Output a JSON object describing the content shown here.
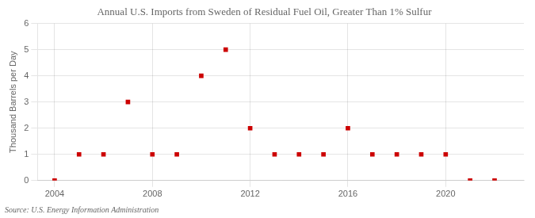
{
  "chart_data": {
    "type": "scatter",
    "title": "Annual U.S. Imports from Sweden of Residual Fuel Oil, Greater Than 1% Sulfur",
    "ylabel": "Thousand Barrels per Day",
    "source": "Source: U.S. Energy Information Administration",
    "x": [
      2004,
      2005,
      2006,
      2007,
      2008,
      2009,
      2010,
      2011,
      2012,
      2013,
      2014,
      2015,
      2016,
      2017,
      2018,
      2019,
      2020,
      2021,
      2022
    ],
    "values": [
      0,
      1,
      1,
      3,
      1,
      1,
      4,
      5,
      2,
      1,
      1,
      1,
      2,
      1,
      1,
      1,
      1,
      0,
      0
    ],
    "color": "#cc0000",
    "marker": "square",
    "xlim": [
      2003.3,
      2023.2
    ],
    "xticks": [
      2004,
      2008,
      2012,
      2016,
      2020
    ],
    "ylim": [
      0,
      6
    ],
    "yticks": [
      0,
      1,
      2,
      3,
      4,
      5,
      6
    ],
    "grid": true
  }
}
